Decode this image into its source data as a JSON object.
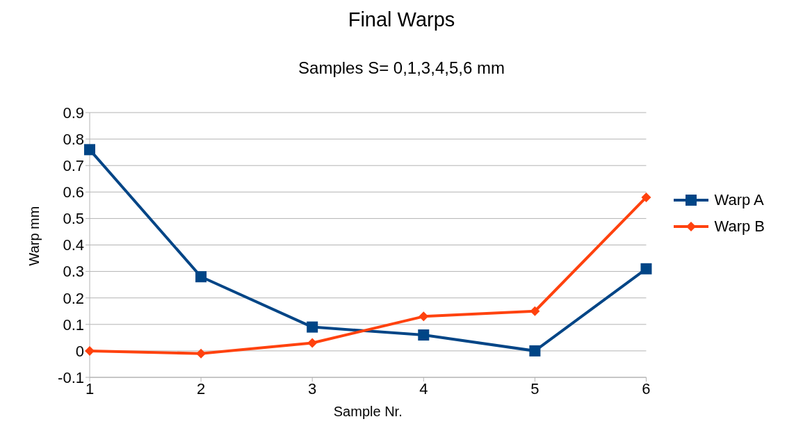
{
  "chart_data": {
    "type": "line",
    "title": "Final Warps",
    "subtitle": "Samples S= 0,1,3,4,5,6 mm",
    "xlabel": "Sample Nr.",
    "ylabel": "Warp mm",
    "x": [
      1,
      2,
      3,
      4,
      5,
      6
    ],
    "series": [
      {
        "name": "Warp A",
        "color": "#004586",
        "marker": "square",
        "values": [
          0.76,
          0.28,
          0.09,
          0.06,
          0,
          0.31
        ]
      },
      {
        "name": "Warp B",
        "color": "#ff420e",
        "marker": "diamond",
        "values": [
          0,
          -0.01,
          0.03,
          0.13,
          0.15,
          0.58
        ]
      }
    ],
    "xlim": [
      1,
      6
    ],
    "xticks": [
      1,
      2,
      3,
      4,
      5,
      6
    ],
    "ylim": [
      -0.1,
      0.9
    ],
    "yticks": [
      -0.1,
      0,
      0.1,
      0.2,
      0.3,
      0.4,
      0.5,
      0.6,
      0.7,
      0.8,
      0.9
    ],
    "grid": "y",
    "legend": "right",
    "line_style": "solid"
  }
}
